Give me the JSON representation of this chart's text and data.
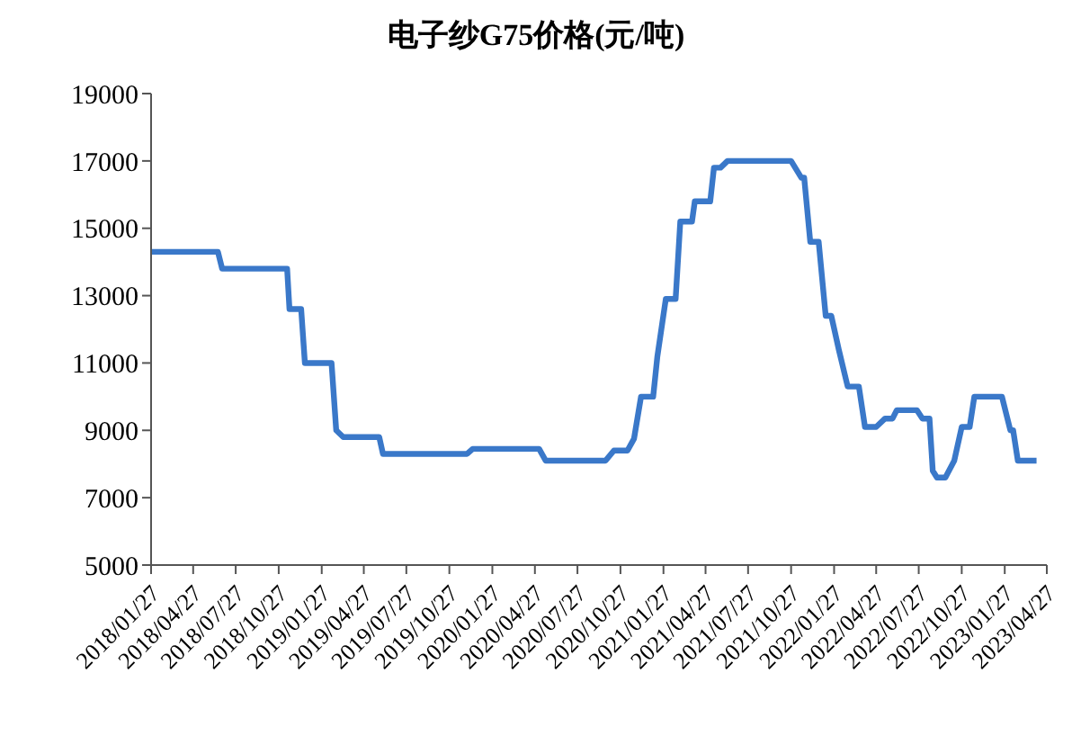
{
  "chart_data": {
    "type": "line",
    "title": "电子纱G75价格(元/吨)",
    "x": [
      "2018-01-27",
      "2018-06-19",
      "2018-06-28",
      "2018-11-14",
      "2018-11-19",
      "2018-12-14",
      "2018-12-22",
      "2019-02-17",
      "2019-02-27",
      "2019-03-14",
      "2019-05-30",
      "2019-06-07",
      "2019-12-04",
      "2019-12-16",
      "2020-05-06",
      "2020-05-20",
      "2020-09-25",
      "2020-10-13",
      "2020-11-11",
      "2020-11-25",
      "2020-12-10",
      "2021-01-05",
      "2021-01-14",
      "2021-02-01",
      "2021-02-22",
      "2021-03-04",
      "2021-03-29",
      "2021-04-04",
      "2021-05-07",
      "2021-05-15",
      "2021-05-29",
      "2021-06-13",
      "2021-10-27",
      "2021-11-18",
      "2021-11-24",
      "2021-12-07",
      "2021-12-25",
      "2022-01-09",
      "2022-01-21",
      "2022-02-06",
      "2022-02-25",
      "2022-03-21",
      "2022-04-03",
      "2022-04-27",
      "2022-05-16",
      "2022-06-01",
      "2022-06-10",
      "2022-07-23",
      "2022-08-04",
      "2022-08-19",
      "2022-08-26",
      "2022-09-04",
      "2022-09-22",
      "2022-10-11",
      "2022-10-27",
      "2022-11-13",
      "2022-11-23",
      "2023-01-21",
      "2023-02-08",
      "2023-02-14",
      "2023-02-24",
      "2023-04-05"
    ],
    "series": [
      {
        "color": "#3a78c9",
        "values": [
          14300,
          14300,
          13800,
          13800,
          12600,
          12600,
          11000,
          11000,
          9000,
          8800,
          8800,
          8300,
          8300,
          8450,
          8450,
          8100,
          8100,
          8400,
          8400,
          8750,
          10000,
          10000,
          11200,
          12900,
          12900,
          15200,
          15200,
          15800,
          15800,
          16800,
          16800,
          17000,
          17000,
          16500,
          16500,
          14600,
          14600,
          12400,
          12400,
          11400,
          10300,
          10300,
          9100,
          9100,
          9350,
          9350,
          9600,
          9600,
          9350,
          9350,
          7800,
          7600,
          7600,
          8100,
          9100,
          9100,
          10000,
          10000,
          9000,
          9000,
          8100,
          8100
        ]
      }
    ],
    "ylim": [
      5000,
      19000
    ],
    "yticks": [
      5000,
      7000,
      9000,
      11000,
      13000,
      15000,
      17000,
      19000
    ],
    "xlim": [
      "2018-01-27",
      "2023-04-27"
    ],
    "xticks": [
      {
        "value": "2018-01-27",
        "label": "2018/01/27"
      },
      {
        "value": "2018-04-27",
        "label": "2018/04/27"
      },
      {
        "value": "2018-07-27",
        "label": "2018/07/27"
      },
      {
        "value": "2018-10-27",
        "label": "2018/10/27"
      },
      {
        "value": "2019-01-27",
        "label": "2019/01/27"
      },
      {
        "value": "2019-04-27",
        "label": "2019/04/27"
      },
      {
        "value": "2019-07-27",
        "label": "2019/07/27"
      },
      {
        "value": "2019-10-27",
        "label": "2019/10/27"
      },
      {
        "value": "2020-01-27",
        "label": "2020/01/27"
      },
      {
        "value": "2020-04-27",
        "label": "2020/04/27"
      },
      {
        "value": "2020-07-27",
        "label": "2020/07/27"
      },
      {
        "value": "2020-10-27",
        "label": "2020/10/27"
      },
      {
        "value": "2021-01-27",
        "label": "2021/01/27"
      },
      {
        "value": "2021-04-27",
        "label": "2021/04/27"
      },
      {
        "value": "2021-07-27",
        "label": "2021/07/27"
      },
      {
        "value": "2021-10-27",
        "label": "2021/10/27"
      },
      {
        "value": "2022-01-27",
        "label": "2022/01/27"
      },
      {
        "value": "2022-04-27",
        "label": "2022/04/27"
      },
      {
        "value": "2022-07-27",
        "label": "2022/07/27"
      },
      {
        "value": "2022-10-27",
        "label": "2022/10/27"
      },
      {
        "value": "2023-01-27",
        "label": "2023/01/27"
      },
      {
        "value": "2023-04-27",
        "label": "2023/04/27"
      }
    ],
    "grid": false,
    "legend": false,
    "marker": "none",
    "line_style": "solid"
  }
}
